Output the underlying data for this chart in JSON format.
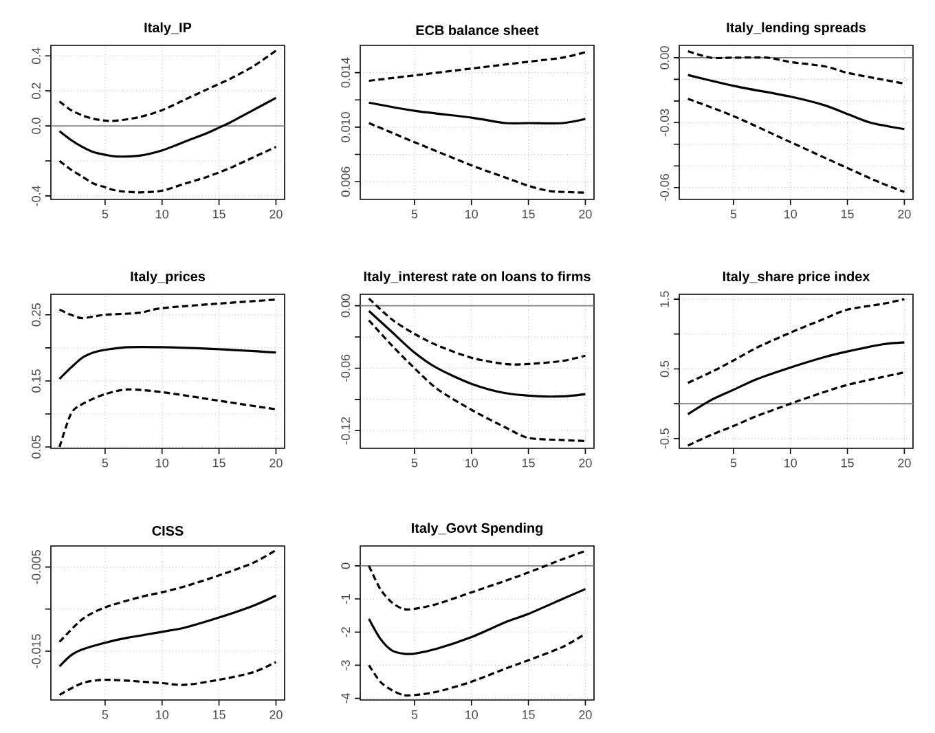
{
  "chart_data": [
    {
      "type": "line",
      "title": "Italy_IP",
      "xlim": [
        0.24,
        20.76
      ],
      "ylim": [
        -0.42,
        0.46
      ],
      "xticks": [
        5,
        10,
        15,
        20
      ],
      "yticks": [
        -0.4,
        {
          "value": -0.2,
          "label": null
        },
        {
          "value": 0,
          "label": "0.0"
        },
        0.2,
        0.4
      ],
      "grid": true,
      "ref_lines": [
        {
          "axis": "y",
          "value": 0,
          "color": "#808080"
        }
      ],
      "series": [
        {
          "color": "#000000",
          "line_style": "solid",
          "x": [
            1,
            2,
            3,
            4,
            5,
            6,
            8,
            10,
            12,
            14,
            15,
            16,
            18,
            20
          ],
          "values": [
            -0.03,
            -0.08,
            -0.12,
            -0.15,
            -0.165,
            -0.175,
            -0.17,
            -0.14,
            -0.09,
            -0.04,
            -0.01,
            0.02,
            0.09,
            0.16
          ]
        },
        {
          "color": "#000000",
          "line_style": "dashed",
          "x": [
            1,
            2,
            3,
            4,
            5,
            6,
            8,
            10,
            12,
            14,
            16,
            18,
            20
          ],
          "values": [
            0.14,
            0.09,
            0.06,
            0.04,
            0.03,
            0.03,
            0.05,
            0.09,
            0.15,
            0.21,
            0.27,
            0.34,
            0.43
          ]
        },
        {
          "color": "#000000",
          "line_style": "dashed",
          "x": [
            1,
            2,
            3,
            4,
            5,
            6,
            8,
            10,
            12,
            14,
            16,
            18,
            20
          ],
          "values": [
            -0.2,
            -0.25,
            -0.29,
            -0.33,
            -0.35,
            -0.37,
            -0.38,
            -0.37,
            -0.33,
            -0.29,
            -0.24,
            -0.18,
            -0.12
          ]
        }
      ]
    },
    {
      "type": "line",
      "title": "ECB balance sheet",
      "xlim": [
        0.24,
        20.76
      ],
      "ylim": [
        0.0047,
        0.016
      ],
      "xticks": [
        5,
        10,
        15,
        20
      ],
      "yticks": [
        0.006,
        {
          "value": 0.008,
          "label": null
        },
        {
          "value": 0.01,
          "label": "0.010"
        },
        {
          "value": 0.012,
          "label": null
        },
        0.014
      ],
      "grid": true,
      "series": [
        {
          "color": "#000000",
          "line_style": "solid",
          "x": [
            1,
            5,
            10,
            13,
            15,
            18,
            20
          ],
          "values": [
            0.0118,
            0.0112,
            0.0107,
            0.0103,
            0.0103,
            0.0103,
            0.0106
          ]
        },
        {
          "color": "#000000",
          "line_style": "dashed",
          "x": [
            1,
            5,
            10,
            15,
            18,
            20
          ],
          "values": [
            0.0134,
            0.0138,
            0.0143,
            0.0148,
            0.0151,
            0.0155
          ]
        },
        {
          "color": "#000000",
          "line_style": "dashed",
          "x": [
            1,
            5,
            10,
            13,
            15,
            17,
            20
          ],
          "values": [
            0.0103,
            0.0089,
            0.0072,
            0.0063,
            0.0057,
            0.0053,
            0.0052
          ]
        }
      ]
    },
    {
      "type": "line",
      "title": "Italy_lending spreads",
      "xlim": [
        0.24,
        20.76
      ],
      "ylim": [
        -0.0655,
        0.0057
      ],
      "xticks": [
        5,
        10,
        15,
        20
      ],
      "yticks": [
        -0.06,
        {
          "value": -0.05,
          "label": null
        },
        {
          "value": -0.04,
          "label": null
        },
        -0.03,
        {
          "value": -0.02,
          "label": null
        },
        {
          "value": -0.01,
          "label": null
        },
        {
          "value": 0,
          "label": "0.00"
        }
      ],
      "grid": true,
      "ref_lines": [
        {
          "axis": "y",
          "value": 0,
          "color": "#808080"
        }
      ],
      "series": [
        {
          "color": "#000000",
          "line_style": "solid",
          "x": [
            1,
            5,
            10,
            13,
            15,
            17,
            20
          ],
          "values": [
            -0.008,
            -0.013,
            -0.018,
            -0.022,
            -0.026,
            -0.03,
            -0.033
          ]
        },
        {
          "color": "#000000",
          "line_style": "dashed",
          "x": [
            1,
            3,
            5,
            8,
            10,
            13,
            15,
            18,
            20
          ],
          "values": [
            0.003,
            0.0,
            0.0,
            0.0,
            -0.002,
            -0.004,
            -0.007,
            -0.01,
            -0.012
          ]
        },
        {
          "color": "#000000",
          "line_style": "dashed",
          "x": [
            1,
            5,
            10,
            15,
            18,
            20
          ],
          "values": [
            -0.019,
            -0.027,
            -0.039,
            -0.051,
            -0.058,
            -0.062
          ]
        }
      ]
    },
    {
      "type": "line",
      "title": "Italy_prices",
      "xlim": [
        0.24,
        20.76
      ],
      "ylim": [
        0.048,
        0.281
      ],
      "xticks": [
        5,
        10,
        15,
        20
      ],
      "yticks": [
        0.05,
        {
          "value": 0.1,
          "label": null
        },
        0.15,
        {
          "value": 0.2,
          "label": null
        },
        0.25
      ],
      "grid": true,
      "series": [
        {
          "color": "#000000",
          "line_style": "solid",
          "x": [
            1,
            2,
            3,
            4,
            5,
            7,
            10,
            15,
            20
          ],
          "values": [
            0.153,
            0.17,
            0.185,
            0.193,
            0.197,
            0.201,
            0.201,
            0.198,
            0.193
          ]
        },
        {
          "color": "#000000",
          "line_style": "dashed",
          "x": [
            1,
            2,
            3,
            5,
            8,
            10,
            15,
            20
          ],
          "values": [
            0.258,
            0.25,
            0.245,
            0.25,
            0.253,
            0.26,
            0.267,
            0.273
          ]
        },
        {
          "color": "#000000",
          "line_style": "dashed",
          "x": [
            1,
            2,
            3,
            5,
            7,
            10,
            15,
            20
          ],
          "values": [
            0.05,
            0.1,
            0.115,
            0.13,
            0.137,
            0.133,
            0.12,
            0.107
          ]
        }
      ]
    },
    {
      "type": "line",
      "title": "Italy_interest rate on loans to firms",
      "xlim": [
        0.24,
        20.76
      ],
      "ylim": [
        -0.137,
        0.011
      ],
      "xticks": [
        5,
        10,
        15,
        20
      ],
      "yticks": [
        -0.12,
        {
          "value": -0.09,
          "label": null
        },
        -0.06,
        {
          "value": -0.03,
          "label": null
        },
        {
          "value": 0,
          "label": "0.00"
        }
      ],
      "grid": true,
      "ref_lines": [
        {
          "axis": "y",
          "value": 0,
          "color": "#808080"
        }
      ],
      "series": [
        {
          "color": "#000000",
          "line_style": "solid",
          "x": [
            1,
            3,
            5,
            7,
            10,
            13,
            16,
            18,
            20
          ],
          "values": [
            -0.005,
            -0.025,
            -0.045,
            -0.06,
            -0.075,
            -0.084,
            -0.087,
            -0.087,
            -0.085
          ]
        },
        {
          "color": "#000000",
          "line_style": "dashed",
          "x": [
            1,
            3,
            5,
            7,
            10,
            13,
            15,
            18,
            20
          ],
          "values": [
            0.007,
            -0.013,
            -0.027,
            -0.038,
            -0.05,
            -0.056,
            -0.056,
            -0.053,
            -0.048
          ]
        },
        {
          "color": "#000000",
          "line_style": "dashed",
          "x": [
            1,
            3,
            5,
            7,
            10,
            13,
            15,
            18,
            20
          ],
          "values": [
            -0.014,
            -0.038,
            -0.06,
            -0.08,
            -0.1,
            -0.117,
            -0.127,
            -0.129,
            -0.13
          ]
        }
      ]
    },
    {
      "type": "line",
      "title": "Italy_share price index",
      "xlim": [
        0.24,
        20.76
      ],
      "ylim": [
        -0.64,
        1.57
      ],
      "xticks": [
        5,
        10,
        15,
        20
      ],
      "yticks": [
        -0.5,
        {
          "value": 0,
          "label": null
        },
        0.5,
        {
          "value": 1,
          "label": null
        },
        1.5
      ],
      "grid": true,
      "ref_lines": [
        {
          "axis": "y",
          "value": 0,
          "color": "#808080"
        }
      ],
      "series": [
        {
          "color": "#000000",
          "line_style": "solid",
          "x": [
            1,
            3,
            5,
            7,
            10,
            13,
            15,
            18,
            20
          ],
          "values": [
            -0.15,
            0.05,
            0.2,
            0.35,
            0.52,
            0.67,
            0.75,
            0.85,
            0.88
          ]
        },
        {
          "color": "#000000",
          "line_style": "dashed",
          "x": [
            1,
            3,
            5,
            7,
            10,
            13,
            15,
            18,
            20
          ],
          "values": [
            0.3,
            0.45,
            0.62,
            0.8,
            1.02,
            1.22,
            1.35,
            1.43,
            1.5
          ]
        },
        {
          "color": "#000000",
          "line_style": "dashed",
          "x": [
            1,
            3,
            5,
            7,
            10,
            13,
            15,
            18,
            20
          ],
          "values": [
            -0.6,
            -0.45,
            -0.32,
            -0.18,
            0.0,
            0.17,
            0.27,
            0.38,
            0.45
          ]
        }
      ]
    },
    {
      "type": "line",
      "title": "CISS",
      "xlim": [
        0.24,
        20.76
      ],
      "ylim": [
        -0.0208,
        -0.0025
      ],
      "xticks": [
        5,
        10,
        15,
        20
      ],
      "yticks": [
        -0.015,
        {
          "value": -0.01,
          "label": null
        },
        -0.005
      ],
      "grid": true,
      "series": [
        {
          "color": "#000000",
          "line_style": "solid",
          "x": [
            1,
            2,
            3,
            5,
            7,
            10,
            12,
            15,
            18,
            20
          ],
          "values": [
            -0.0168,
            -0.0155,
            -0.0148,
            -0.014,
            -0.0134,
            -0.0127,
            -0.0122,
            -0.011,
            -0.0096,
            -0.0084
          ]
        },
        {
          "color": "#000000",
          "line_style": "dashed",
          "x": [
            1,
            3,
            5,
            8,
            10,
            12,
            15,
            18,
            20
          ],
          "values": [
            -0.0139,
            -0.0112,
            -0.0098,
            -0.0086,
            -0.008,
            -0.0073,
            -0.006,
            -0.0045,
            -0.003
          ]
        },
        {
          "color": "#000000",
          "line_style": "dashed",
          "x": [
            1,
            3,
            5,
            8,
            10,
            12,
            15,
            18,
            20
          ],
          "values": [
            -0.0202,
            -0.0188,
            -0.0184,
            -0.0186,
            -0.0188,
            -0.019,
            -0.0184,
            -0.0175,
            -0.0163
          ]
        }
      ]
    },
    {
      "type": "line",
      "title": "Italy_Govt Spending",
      "xlim": [
        0.24,
        20.76
      ],
      "ylim": [
        -4.05,
        0.6
      ],
      "xticks": [
        5,
        10,
        15,
        20
      ],
      "yticks": [
        -4,
        -3,
        -2,
        -1,
        0
      ],
      "grid": true,
      "ref_lines": [
        {
          "axis": "y",
          "value": 0,
          "color": "#808080"
        }
      ],
      "series": [
        {
          "color": "#000000",
          "line_style": "solid",
          "x": [
            1,
            2,
            3,
            4,
            5,
            7,
            10,
            13,
            15,
            18,
            20
          ],
          "values": [
            -1.6,
            -2.2,
            -2.55,
            -2.65,
            -2.65,
            -2.5,
            -2.15,
            -1.7,
            -1.45,
            -1.0,
            -0.7
          ]
        },
        {
          "color": "#000000",
          "line_style": "dashed",
          "x": [
            1,
            2,
            3,
            4,
            5,
            7,
            10,
            13,
            15,
            18,
            20
          ],
          "values": [
            0.0,
            -0.7,
            -1.1,
            -1.3,
            -1.3,
            -1.15,
            -0.8,
            -0.45,
            -0.2,
            0.2,
            0.45
          ]
        },
        {
          "color": "#000000",
          "line_style": "dashed",
          "x": [
            1,
            2,
            3,
            4,
            5,
            7,
            10,
            13,
            15,
            18,
            20
          ],
          "values": [
            -3.0,
            -3.5,
            -3.75,
            -3.9,
            -3.9,
            -3.8,
            -3.5,
            -3.1,
            -2.85,
            -2.45,
            -2.05
          ]
        }
      ]
    }
  ]
}
